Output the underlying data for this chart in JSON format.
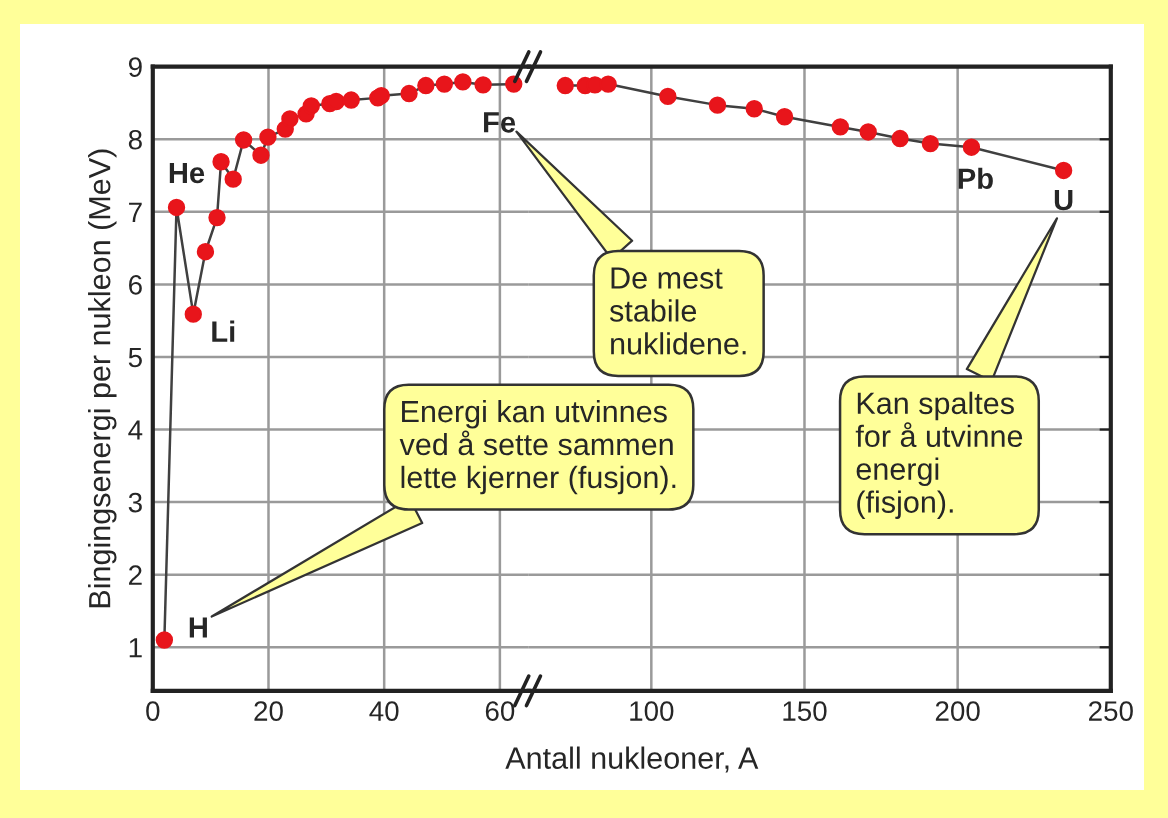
{
  "chart_data": [
    {
      "type": "line",
      "xlabel": "Antall nukleoner, A",
      "ylabel": "Bingingsenergi per nukleon (MeV)",
      "xlim": [
        0,
        65
      ],
      "xticks": [
        0,
        20,
        40,
        60
      ],
      "ylim": [
        0.4,
        9
      ],
      "yticks": [
        1,
        2,
        3,
        4,
        5,
        6,
        7,
        8,
        9
      ],
      "grid": true,
      "marker": "circle",
      "line_style": "solid",
      "series": [
        {
          "color": "#e8151b",
          "x": [
            2,
            4.1,
            7.0,
            9.1,
            11.1,
            11.8,
            13.9,
            15.7,
            18.7,
            19.9,
            22.9,
            23.7,
            26.5,
            27.4,
            30.6,
            31.7,
            34.3,
            38.9,
            39.5,
            44.3,
            47.2,
            50.4,
            53.6,
            57.1,
            62.4
          ],
          "values": [
            1.1,
            7.06,
            5.59,
            6.45,
            6.92,
            7.69,
            7.45,
            7.99,
            7.78,
            8.03,
            8.14,
            8.28,
            8.35,
            8.46,
            8.49,
            8.52,
            8.54,
            8.57,
            8.6,
            8.63,
            8.74,
            8.76,
            8.79,
            8.75,
            8.76
          ]
        }
      ],
      "annotations": [
        {
          "text": "H",
          "x": 2,
          "y": 1.1
        },
        {
          "text": "He",
          "x": 4.1,
          "y": 7.06
        },
        {
          "text": "Li",
          "x": 7.0,
          "y": 5.59
        },
        {
          "text": "Fe",
          "x": 57.1,
          "y": 8.75
        },
        "Energi kan utvinnes\nved å sette sammen\nlette kjerner (fusjon).",
        "De mest\nstabile\nnuklidene."
      ]
    },
    {
      "type": "line",
      "xlim": [
        60,
        250
      ],
      "xticks": [
        100,
        150,
        200,
        250
      ],
      "ylim": [
        0.4,
        9
      ],
      "yticks": [
        1,
        2,
        3,
        4,
        5,
        6,
        7,
        8,
        9
      ],
      "grid": true,
      "marker": "circle",
      "line_style": "solid",
      "tick_labels": "x",
      "series": [
        {
          "color": "#e8151b",
          "x": [
            71.9,
            78.4,
            81.6,
            85.9,
            105.4,
            121.6,
            133.6,
            143.5,
            161.7,
            170.8,
            181.2,
            191.1,
            204.5,
            234.6
          ],
          "values": [
            8.74,
            8.74,
            8.75,
            8.76,
            8.59,
            8.47,
            8.42,
            8.31,
            8.17,
            8.1,
            8.01,
            7.94,
            7.89,
            7.57
          ]
        }
      ],
      "annotations": [
        {
          "text": "Pb",
          "x": 204.5,
          "y": 7.89
        },
        {
          "text": "U",
          "x": 234.6,
          "y": 7.57
        },
        "Kan spaltes\nfor å utvinne\nenergi\n(fisjon)."
      ]
    }
  ]
}
